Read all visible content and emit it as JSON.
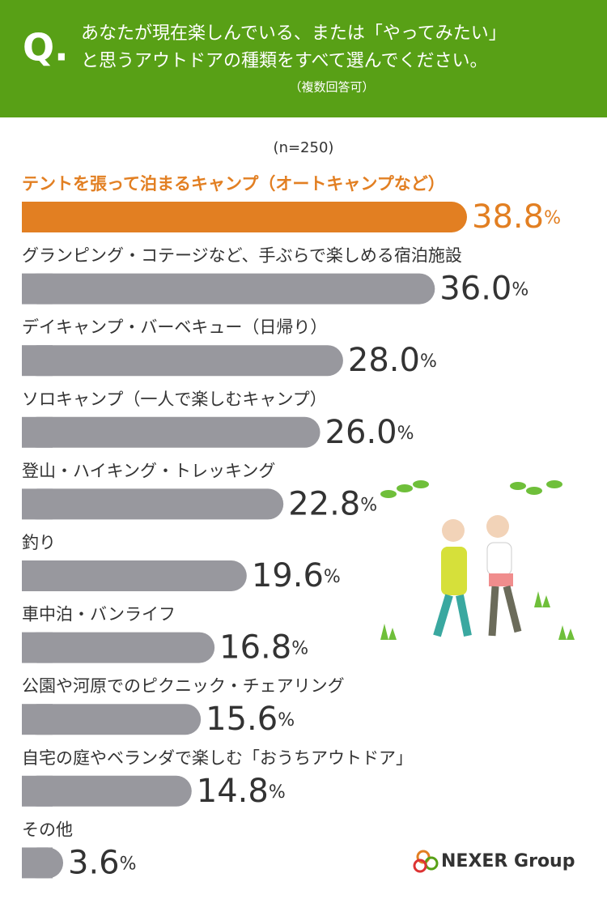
{
  "question_mark": "Q.",
  "title": [
    "あなたが現在楽しんでいる、または「やってみたい」",
    "と思うアウトドアの種類をすべて選んでください。"
  ],
  "subtitle": "（複数回答可）",
  "logo": "NEXER Group",
  "chart_data": {
    "type": "bar",
    "note": "(n=250)",
    "categories": [
      "テントを張って泊まるキャンプ（オートキャンプなど）",
      "グランピング・コテージなど、手ぶらで楽しめる宿泊施設",
      "デイキャンプ・バーベキュー（日帰り）",
      "ソロキャンプ（一人で楽しむキャンプ）",
      "登山・ハイキング・トレッキング",
      "釣り",
      "車中泊・バンライフ",
      "公園や河原でのピクニック・チェアリング",
      "自宅の庭やベランダで楽しむ「おうちアウトドア」",
      "その他"
    ],
    "values": [
      38.8,
      36.0,
      28.0,
      26.0,
      22.8,
      19.6,
      16.8,
      15.6,
      14.8,
      3.6
    ],
    "value_labels": [
      "38.8%",
      "36.0%",
      "28.0%",
      "26.0%",
      "22.8%",
      "19.6%",
      "16.8%",
      "15.6%",
      "14.8%",
      "3.6%"
    ],
    "colors": [
      "#e27f22",
      "#98989e",
      "#98989e",
      "#98989e",
      "#98989e",
      "#98989e",
      "#98989e",
      "#98989e",
      "#98989e",
      "#98989e"
    ]
  }
}
